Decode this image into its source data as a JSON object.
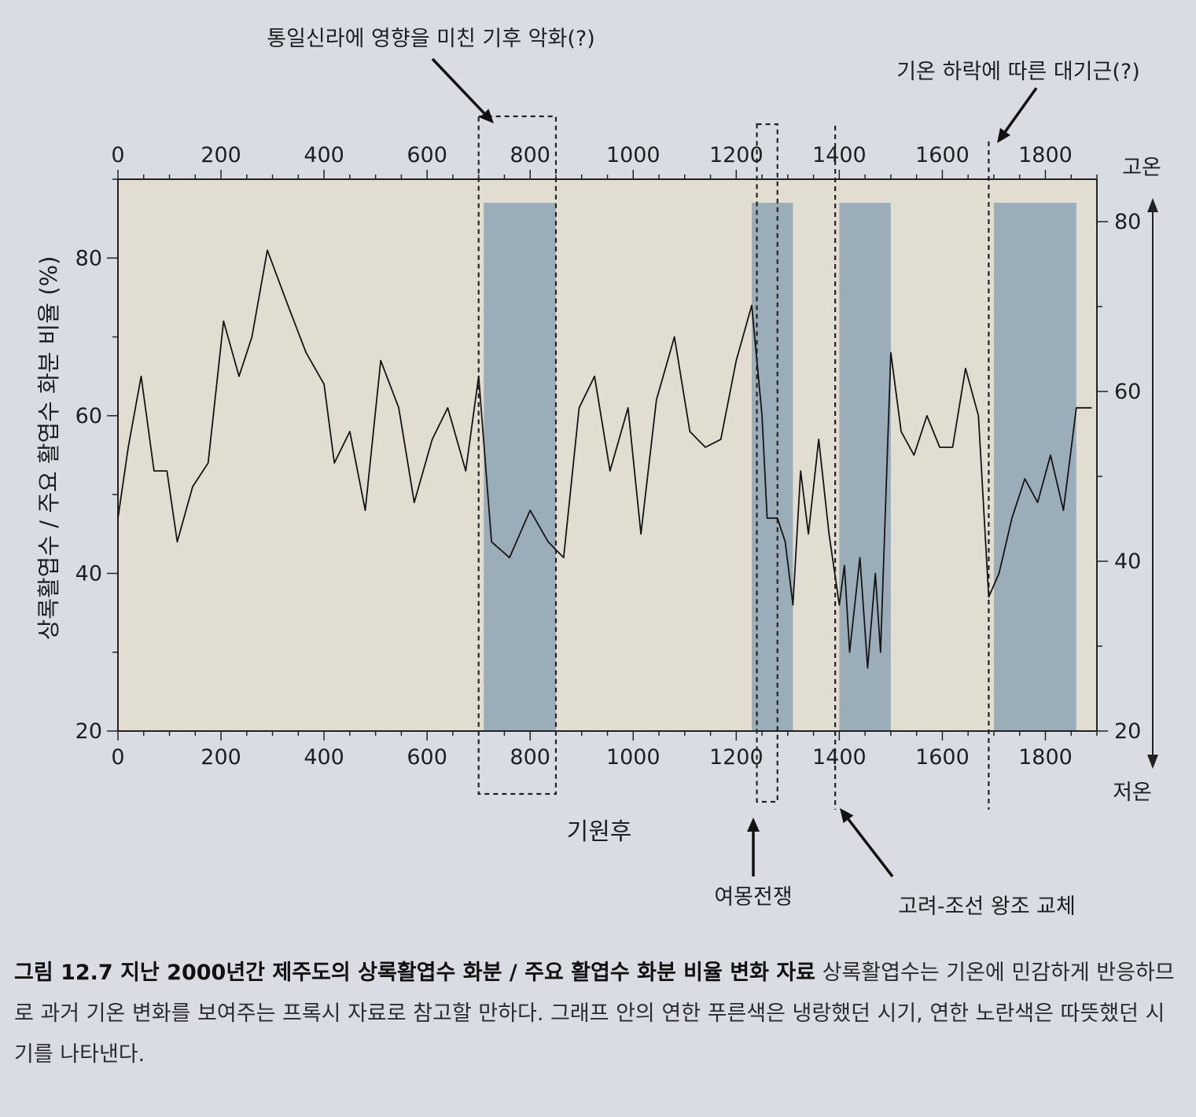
{
  "chart_data": {
    "type": "line",
    "xlabel": "기원후",
    "ylabel": "상록활엽수 / 주요 활엽수 화분 비율 (%)",
    "x_ticks": [
      0,
      200,
      400,
      600,
      800,
      1000,
      1200,
      1400,
      1600,
      1800
    ],
    "x_ticks_top": [
      0,
      200,
      400,
      600,
      800,
      1000,
      1200,
      1400,
      1600,
      1800
    ],
    "y_ticks_left": [
      20,
      40,
      60,
      80
    ],
    "y_ticks_right": [
      20,
      40,
      60,
      80
    ],
    "xlim": [
      0,
      1900
    ],
    "ylim_left": [
      20,
      90
    ],
    "ylim_right": [
      20,
      85
    ],
    "right_axis_top_label": "고온",
    "right_axis_bottom_label": "저온",
    "series": [
      {
        "x": [
          0,
          20,
          45,
          70,
          95,
          115,
          145,
          175,
          205,
          235,
          260,
          290,
          330,
          365,
          400,
          420,
          450,
          480,
          510,
          545,
          575,
          610,
          640,
          675,
          700,
          725,
          760,
          800,
          835,
          865,
          895,
          925,
          955,
          990,
          1015,
          1045,
          1080,
          1110,
          1140,
          1170,
          1200,
          1230,
          1250,
          1260,
          1280,
          1295,
          1310,
          1325,
          1340,
          1360,
          1380,
          1400,
          1410,
          1420,
          1440,
          1455,
          1470,
          1480,
          1500,
          1520,
          1545,
          1570,
          1595,
          1620,
          1645,
          1670,
          1690,
          1710,
          1735,
          1760,
          1785,
          1810,
          1835,
          1860,
          1890
        ],
        "y": [
          47,
          56,
          65,
          53,
          53,
          44,
          51,
          54,
          72,
          65,
          70,
          81,
          74,
          68,
          64,
          54,
          58,
          48,
          67,
          61,
          49,
          57,
          61,
          53,
          65,
          44,
          42,
          48,
          44,
          42,
          61,
          65,
          53,
          61,
          45,
          62,
          70,
          58,
          56,
          57,
          67,
          74,
          60,
          47,
          47,
          44,
          36,
          53,
          45,
          57,
          45,
          36,
          41,
          30,
          42,
          28,
          40,
          30,
          68,
          58,
          55,
          60,
          56,
          56,
          66,
          60,
          37,
          40,
          47,
          52,
          49,
          55,
          48,
          61,
          61
        ]
      }
    ],
    "shaded_cold_periods": [
      [
        710,
        850
      ],
      [
        1230,
        1310
      ],
      [
        1400,
        1500
      ],
      [
        1700,
        1860
      ]
    ],
    "annotations": [
      {
        "text": "통일신라에 영향을 미친 기후 악화(?)",
        "target": [
          700,
          850
        ]
      },
      {
        "text": "기온 하락에 따른 대기근(?)",
        "target": 1690
      },
      {
        "text": "여몽전쟁",
        "target": [
          1240,
          1280
        ]
      },
      {
        "text": "고려-조선 왕조 교체",
        "target": 1392
      }
    ]
  },
  "caption": {
    "title": "그림 12.7  지난 2000년간 제주도의 상록활엽수 화분 / 주요 활엽수 화분 비율 변화 자료",
    "body": " 상록활엽수는 기온에 민감하게 반응하므로 과거 기온 변화를 보여주는 프록시 자료로 참고할 만하다. 그래프 안의 연한 푸른색은 냉랑했던 시기, 연한 노란색은 따뜻했던 시기를 나타낸다."
  },
  "colors": {
    "cold_band": "#8fa4b6",
    "warm_band": "#e1ddd0",
    "line": "#151515",
    "background": "#d9dde3"
  }
}
